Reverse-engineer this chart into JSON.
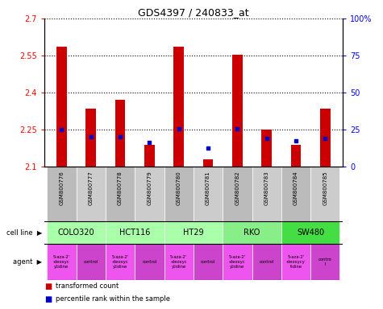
{
  "title": "GDS4397 / 240833_at",
  "samples": [
    "GSM800776",
    "GSM800777",
    "GSM800778",
    "GSM800779",
    "GSM800780",
    "GSM800781",
    "GSM800782",
    "GSM800783",
    "GSM800784",
    "GSM800785"
  ],
  "red_values": [
    2.585,
    2.335,
    2.37,
    2.19,
    2.585,
    2.13,
    2.553,
    2.25,
    2.19,
    2.335
  ],
  "blue_y_left": [
    2.25,
    2.22,
    2.22,
    2.2,
    2.255,
    2.175,
    2.253,
    2.215,
    2.205,
    2.215
  ],
  "ylim_left": [
    2.1,
    2.7
  ],
  "ylim_right": [
    0,
    100
  ],
  "yticks_left": [
    2.1,
    2.25,
    2.4,
    2.55,
    2.7
  ],
  "yticks_right": [
    0,
    25,
    50,
    75,
    100
  ],
  "ytick_labels_left": [
    "2.1",
    "2.25",
    "2.4",
    "2.55",
    "2.7"
  ],
  "ytick_labels_right": [
    "0",
    "25",
    "50",
    "75",
    "100%"
  ],
  "bar_color": "#cc0000",
  "dot_color": "#0000cc",
  "bar_bottom": 2.1,
  "gridline_style": "dotted",
  "gridline_color": "black",
  "legend_red": "transformed count",
  "legend_blue": "percentile rank within the sample",
  "label_cell_line": "cell line",
  "label_agent": "agent",
  "sample_bg_even": "#bbbbbb",
  "sample_bg_odd": "#cccccc",
  "cell_line_entries": [
    {
      "name": "COLO320",
      "start": 0,
      "end": 1,
      "color": "#aaffaa"
    },
    {
      "name": "HCT116",
      "start": 2,
      "end": 3,
      "color": "#aaffaa"
    },
    {
      "name": "HT29",
      "start": 4,
      "end": 5,
      "color": "#aaffaa"
    },
    {
      "name": "RKO",
      "start": 6,
      "end": 7,
      "color": "#88ee88"
    },
    {
      "name": "SW480",
      "start": 8,
      "end": 9,
      "color": "#44dd44"
    }
  ],
  "agent_entries": [
    {
      "label": "5-aza-2'\n-deoxyc\nytidine",
      "idx": 0,
      "is_drug": true
    },
    {
      "label": "control",
      "idx": 1,
      "is_drug": false
    },
    {
      "label": "5-aza-2'\n-deoxyc\nytidine",
      "idx": 2,
      "is_drug": true
    },
    {
      "label": "control",
      "idx": 3,
      "is_drug": false
    },
    {
      "label": "5-aza-2'\n-deoxyc\nytidine",
      "idx": 4,
      "is_drug": true
    },
    {
      "label": "control",
      "idx": 5,
      "is_drug": false
    },
    {
      "label": "5-aza-2'\n-deoxyc\nytidine",
      "idx": 6,
      "is_drug": true
    },
    {
      "label": "control",
      "idx": 7,
      "is_drug": false
    },
    {
      "label": "5-aza-2'\n-deoxycy\ntidine",
      "idx": 8,
      "is_drug": true
    },
    {
      "label": "contro\nl",
      "idx": 9,
      "is_drug": false
    }
  ],
  "drug_color": "#ee55ee",
  "control_color": "#cc44cc"
}
